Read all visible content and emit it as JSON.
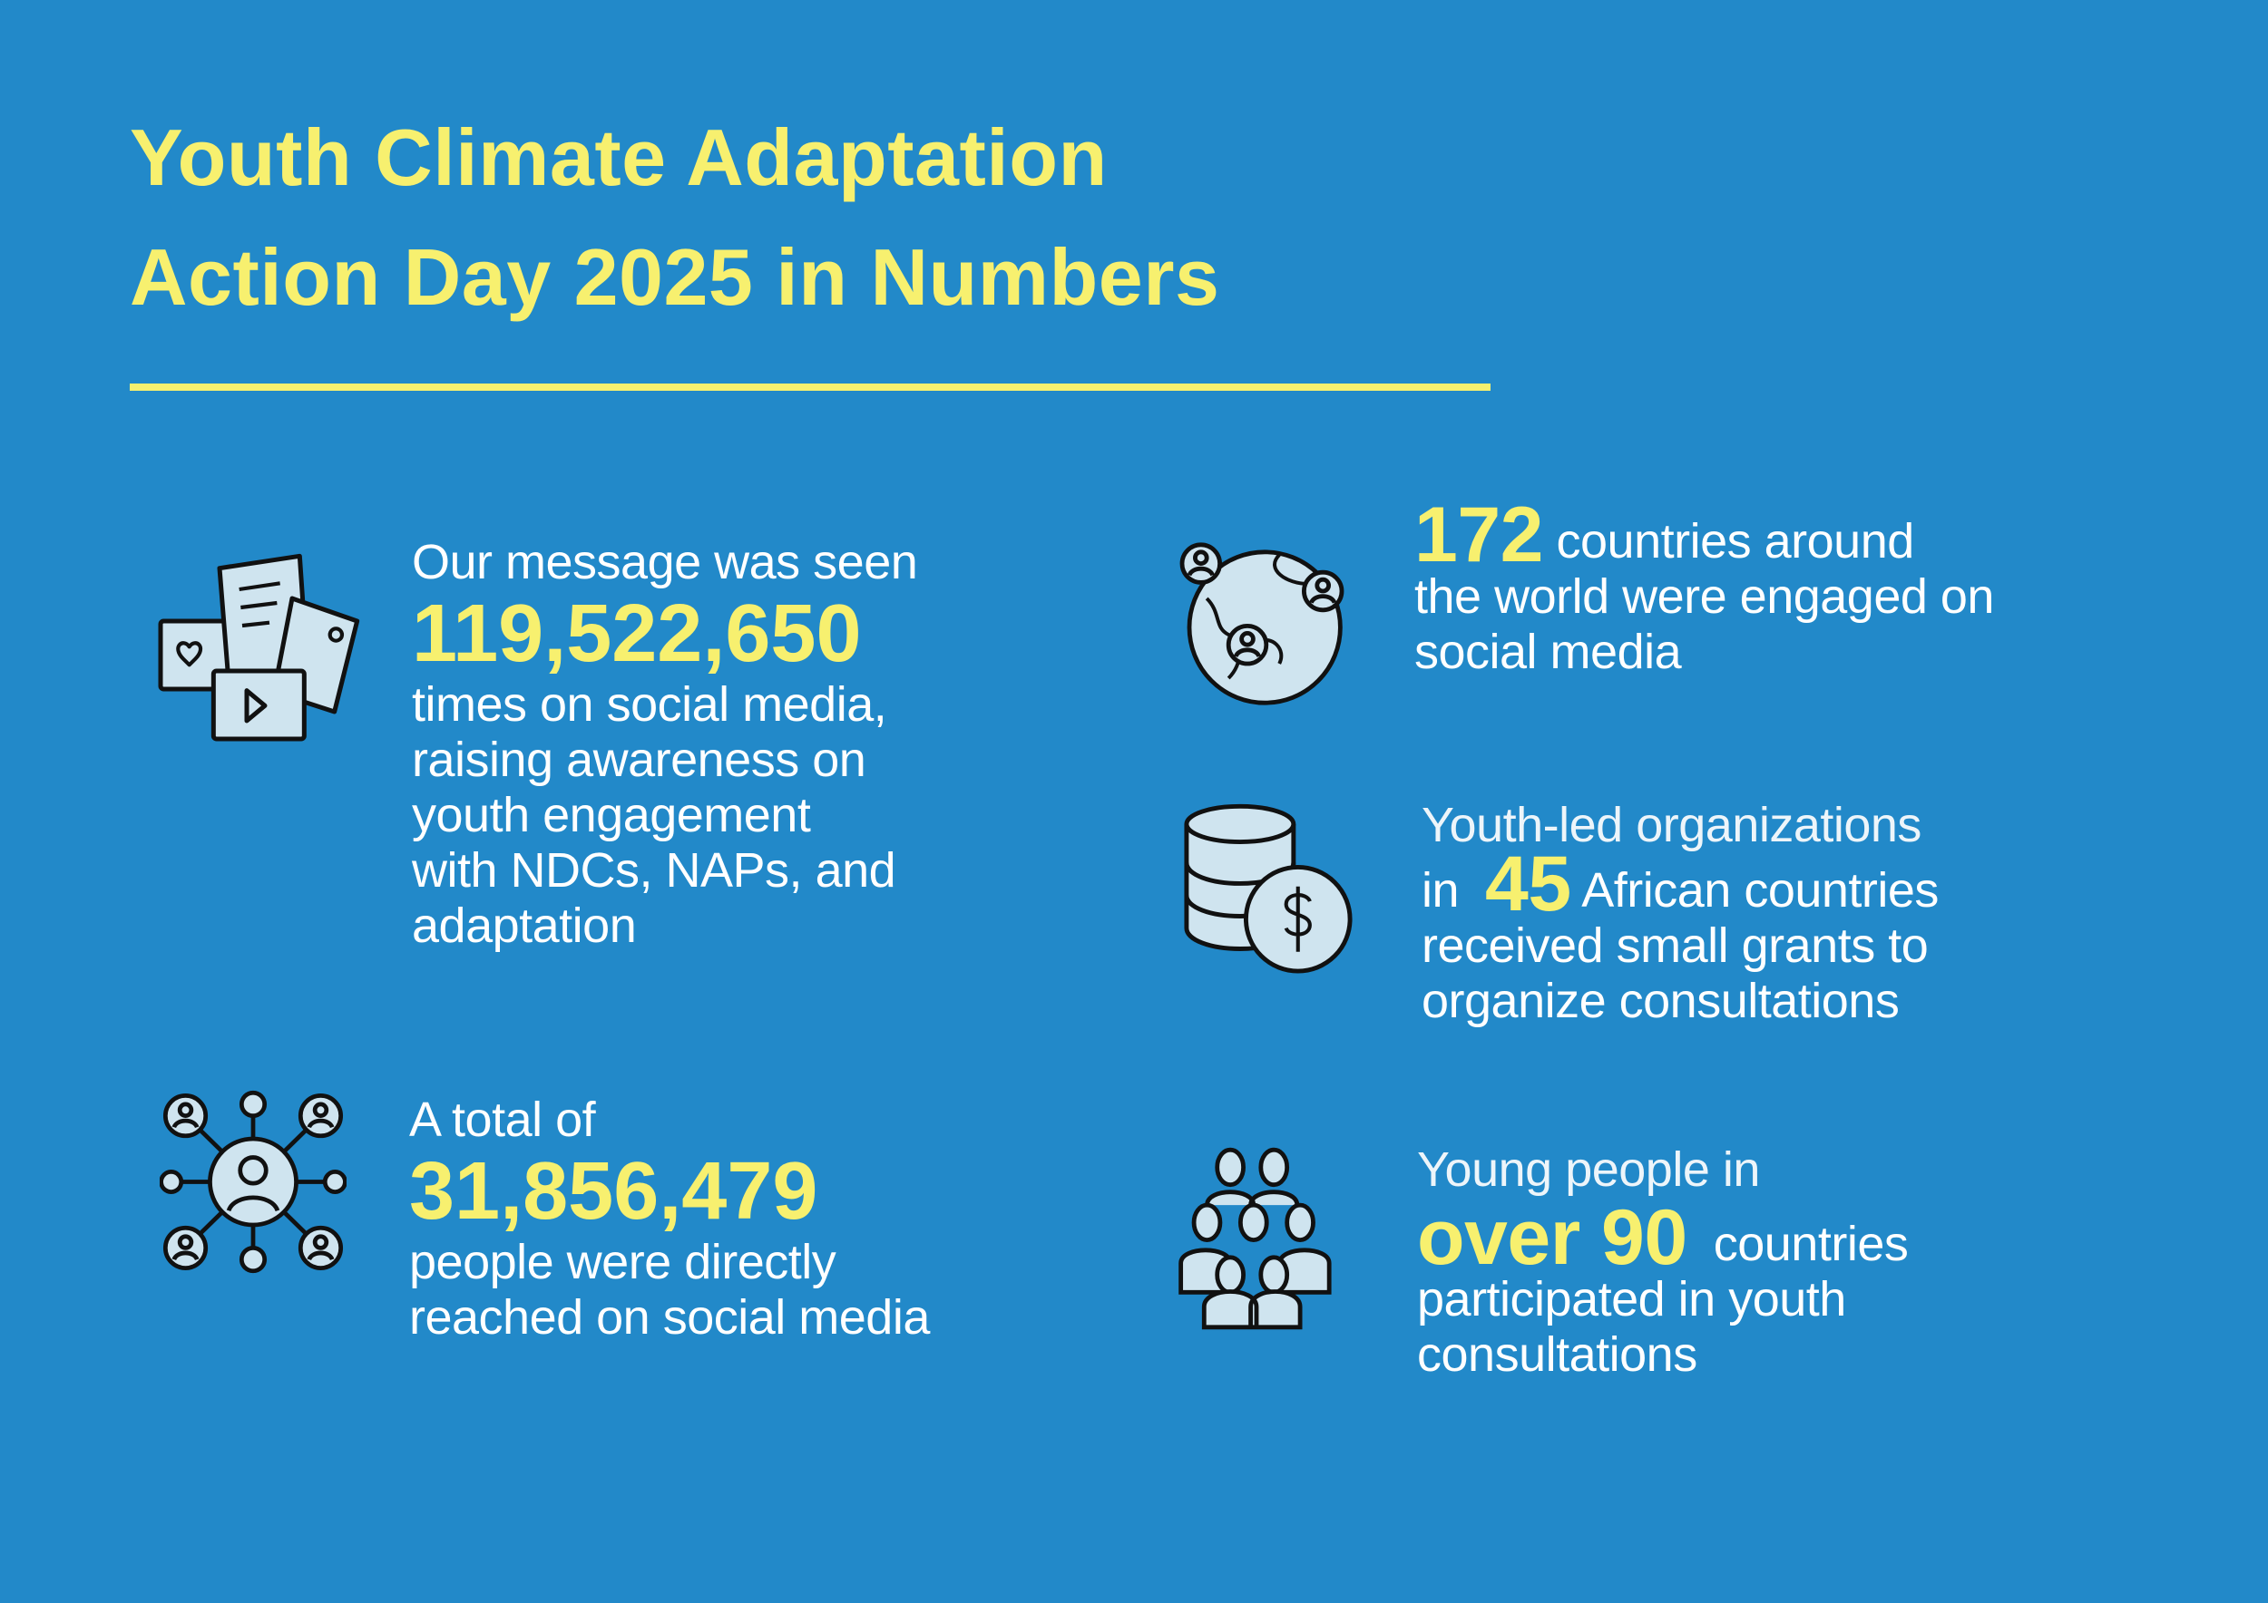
{
  "title": {
    "line1": "Youth Climate Adaptation",
    "line2": "Action Day 2025 in Numbers"
  },
  "colors": {
    "background": "#2289c9",
    "accent": "#f7f06f",
    "icon_fill": "#cfe4ef"
  },
  "stats": {
    "views": {
      "icon": "social-media-posts-icon",
      "before": "Our message was seen",
      "number": "119,522,650",
      "after": [
        "times on social media,",
        "raising awareness on",
        "youth engagement",
        "with NDCs, NAPs, and",
        "adaptation"
      ]
    },
    "reach": {
      "icon": "people-network-icon",
      "before": "A total of",
      "number": "31,856,479",
      "after": [
        "people were directly",
        "reached on social media"
      ]
    },
    "countries": {
      "icon": "globe-people-icon",
      "number": "172",
      "after_inline": "countries around",
      "after": [
        "the world were engaged on",
        "social media"
      ]
    },
    "grants": {
      "icon": "coins-dollar-icon",
      "before": "Youth-led organizations",
      "prefix": "in",
      "number": "45",
      "after_inline": "African countries",
      "after": [
        "received small grants to",
        "organize consultations"
      ]
    },
    "consultations": {
      "icon": "group-people-icon",
      "before": "Young people in",
      "number": "over 90",
      "after_inline": "countries",
      "after": [
        "participated in youth",
        "consultations"
      ]
    }
  }
}
